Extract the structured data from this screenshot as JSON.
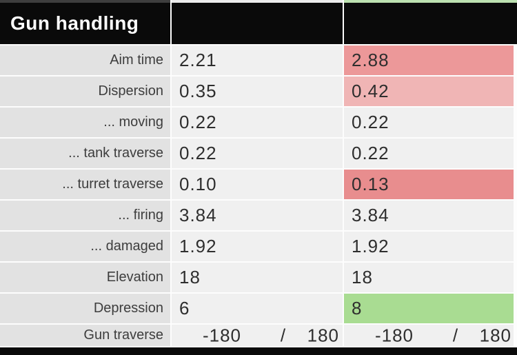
{
  "section": {
    "title": "Gun handling"
  },
  "column_indicators": {
    "label_column_color": "#3e3e3e",
    "tank_a_color": "#ececec",
    "tank_b_color": "#bce1b1"
  },
  "palette": {
    "header_bg": "#0a0a0a",
    "footer_bg": "#0a0a0a",
    "label_cell_bg": "#e2e2e2",
    "value_cell_bg": "#f0f0f0",
    "red_medium": "#ec9899",
    "red_light": "#f0b5b5",
    "red_strong": "#e88d8e",
    "green_better": "#a9dc92"
  },
  "rows": [
    {
      "label": "Aim time",
      "a": {
        "text": "2.21"
      },
      "b": {
        "text": "2.88",
        "highlight": "red_medium"
      }
    },
    {
      "label": "Dispersion",
      "a": {
        "text": "0.35"
      },
      "b": {
        "text": "0.42",
        "highlight": "red_light"
      }
    },
    {
      "label": "... moving",
      "a": {
        "text": "0.22"
      },
      "b": {
        "text": "0.22"
      }
    },
    {
      "label": "... tank traverse",
      "a": {
        "text": "0.22"
      },
      "b": {
        "text": "0.22"
      }
    },
    {
      "label": "... turret traverse",
      "a": {
        "text": "0.10"
      },
      "b": {
        "text": "0.13",
        "highlight": "red_strong"
      }
    },
    {
      "label": "... firing",
      "a": {
        "text": "3.84"
      },
      "b": {
        "text": "3.84"
      }
    },
    {
      "label": "... damaged",
      "a": {
        "text": "1.92"
      },
      "b": {
        "text": "1.92"
      }
    },
    {
      "label": "Elevation",
      "a": {
        "text": "18"
      },
      "b": {
        "text": "18"
      }
    },
    {
      "label": "Depression",
      "a": {
        "text": "6"
      },
      "b": {
        "text": "8",
        "highlight": "green_better"
      }
    },
    {
      "label": "Gun traverse",
      "compact": true,
      "a": {
        "parts": [
          "-180",
          "/",
          "180"
        ]
      },
      "b": {
        "parts": [
          "-180",
          "/",
          "180"
        ]
      }
    }
  ]
}
